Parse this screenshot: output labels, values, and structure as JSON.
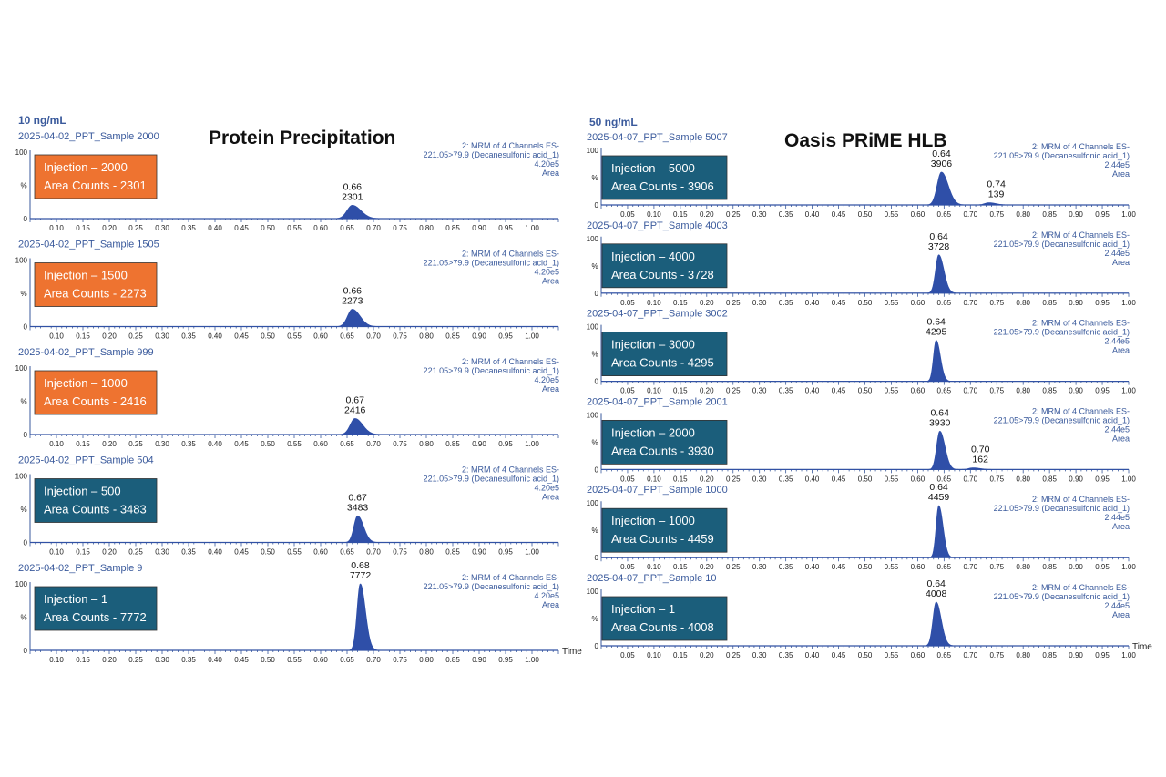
{
  "panels": [
    {
      "concentration": "10 ng/mL",
      "heading": "Protein Precipitation",
      "time_axis_label": "Time"
    },
    {
      "concentration": "50 ng/mL",
      "heading": "Oasis PRiME HLB",
      "time_axis_label": "Time"
    }
  ],
  "chart_data": [
    {
      "type": "line",
      "panel": 0,
      "sample": "2025-04-02_PPT_Sample 2000",
      "channel": [
        "2: MRM of 4 Channels ES-",
        "221.05>79.9 (Decanesulfonic acid_1)",
        "4.20e5",
        "Area"
      ],
      "injection": "Injection – 2000",
      "area_counts": "Area Counts - 2301",
      "box_color": "#ee7330",
      "ylim": [
        0,
        100
      ],
      "y_ticks": [
        "100",
        "0"
      ],
      "ylabel": "%",
      "xlim": [
        0.05,
        1.05
      ],
      "x_ticks": [
        "0.10",
        "0.15",
        "0.20",
        "0.25",
        "0.30",
        "0.35",
        "0.40",
        "0.45",
        "0.50",
        "0.55",
        "0.60",
        "0.65",
        "0.70",
        "0.75",
        "0.80",
        "0.85",
        "0.90",
        "0.95",
        "1.00"
      ],
      "peaks": [
        {
          "rt": 0.66,
          "height": 20,
          "width": 0.01,
          "rt_label": "0.66",
          "area_label": "2301"
        }
      ]
    },
    {
      "type": "line",
      "panel": 0,
      "sample": "2025-04-02_PPT_Sample 1505",
      "channel": [
        "2: MRM of 4 Channels ES-",
        "221.05>79.9 (Decanesulfonic acid_1)",
        "4.20e5",
        "Area"
      ],
      "injection": "Injection – 1500",
      "area_counts": "Area Counts - 2273",
      "box_color": "#ee7330",
      "ylim": [
        0,
        100
      ],
      "y_ticks": [
        "100",
        "0"
      ],
      "ylabel": "%",
      "xlim": [
        0.05,
        1.05
      ],
      "x_ticks": [
        "0.10",
        "0.15",
        "0.20",
        "0.25",
        "0.30",
        "0.35",
        "0.40",
        "0.45",
        "0.50",
        "0.55",
        "0.60",
        "0.65",
        "0.70",
        "0.75",
        "0.80",
        "0.85",
        "0.90",
        "0.95",
        "1.00"
      ],
      "peaks": [
        {
          "rt": 0.66,
          "height": 26,
          "width": 0.009,
          "rt_label": "0.66",
          "area_label": "2273"
        }
      ]
    },
    {
      "type": "line",
      "panel": 0,
      "sample": "2025-04-02_PPT_Sample 999",
      "channel": [
        "2: MRM of 4 Channels ES-",
        "221.05>79.9 (Decanesulfonic acid_1)",
        "4.20e5",
        "Area"
      ],
      "injection": "Injection – 1000",
      "area_counts": "Area Counts - 2416",
      "box_color": "#ee7330",
      "ylim": [
        0,
        100
      ],
      "y_ticks": [
        "100",
        "0"
      ],
      "ylabel": "%",
      "xlim": [
        0.05,
        1.05
      ],
      "x_ticks": [
        "0.10",
        "0.15",
        "0.20",
        "0.25",
        "0.30",
        "0.35",
        "0.40",
        "0.45",
        "0.50",
        "0.55",
        "0.60",
        "0.65",
        "0.70",
        "0.75",
        "0.80",
        "0.85",
        "0.90",
        "0.95",
        "1.00"
      ],
      "peaks": [
        {
          "rt": 0.665,
          "height": 24,
          "width": 0.009,
          "rt_label": "0.67",
          "area_label": "2416"
        }
      ]
    },
    {
      "type": "line",
      "panel": 0,
      "sample": "2025-04-02_PPT_Sample 504",
      "channel": [
        "2: MRM of 4 Channels ES-",
        "221.05>79.9 (Decanesulfonic acid_1)",
        "4.20e5",
        "Area"
      ],
      "injection": "Injection – 500",
      "area_counts": "Area Counts - 3483",
      "box_color": "#1b5e7b",
      "ylim": [
        0,
        100
      ],
      "y_ticks": [
        "100",
        "0"
      ],
      "ylabel": "%",
      "xlim": [
        0.05,
        1.05
      ],
      "x_ticks": [
        "0.10",
        "0.15",
        "0.20",
        "0.25",
        "0.30",
        "0.35",
        "0.40",
        "0.45",
        "0.50",
        "0.55",
        "0.60",
        "0.65",
        "0.70",
        "0.75",
        "0.80",
        "0.85",
        "0.90",
        "0.95",
        "1.00"
      ],
      "peaks": [
        {
          "rt": 0.67,
          "height": 40,
          "width": 0.007,
          "rt_label": "0.67",
          "area_label": "3483"
        }
      ]
    },
    {
      "type": "line",
      "panel": 0,
      "sample": "2025-04-02_PPT_Sample 9",
      "channel": [
        "2: MRM of 4 Channels ES-",
        "221.05>79.9 (Decanesulfonic acid_1)",
        "4.20e5",
        "Area"
      ],
      "injection": "Injection – 1",
      "area_counts": "Area Counts - 7772",
      "box_color": "#1b5e7b",
      "ylim": [
        0,
        100
      ],
      "y_ticks": [
        "100",
        "0"
      ],
      "ylabel": "%",
      "xlim": [
        0.05,
        1.05
      ],
      "x_ticks": [
        "0.10",
        "0.15",
        "0.20",
        "0.25",
        "0.30",
        "0.35",
        "0.40",
        "0.45",
        "0.50",
        "0.55",
        "0.60",
        "0.65",
        "0.70",
        "0.75",
        "0.80",
        "0.85",
        "0.90",
        "0.95",
        "1.00"
      ],
      "peaks": [
        {
          "rt": 0.675,
          "height": 100,
          "width": 0.006,
          "rt_label": "0.68",
          "area_label": "7772"
        }
      ]
    },
    {
      "type": "line",
      "panel": 1,
      "sample": "2025-04-07_PPT_Sample 5007",
      "channel": [
        "2: MRM of 4 Channels ES-",
        "221.05>79.9 (Decanesulfonic acid_1)",
        "2.44e5",
        "Area"
      ],
      "injection": "Injection – 5000",
      "area_counts": "Area Counts - 3906",
      "box_color": "#1b5e7b",
      "ylim": [
        0,
        100
      ],
      "y_ticks": [
        "100",
        "0"
      ],
      "ylabel": "%",
      "xlim": [
        0.0,
        1.0
      ],
      "x_ticks": [
        "0.05",
        "0.10",
        "0.15",
        "0.20",
        "0.25",
        "0.30",
        "0.35",
        "0.40",
        "0.45",
        "0.50",
        "0.55",
        "0.60",
        "0.65",
        "0.70",
        "0.75",
        "0.80",
        "0.85",
        "0.90",
        "0.95",
        "1.00"
      ],
      "peaks": [
        {
          "rt": 0.645,
          "height": 60,
          "width": 0.008,
          "rt_label": "0.64",
          "area_label": "3906"
        },
        {
          "rt": 0.735,
          "height": 4,
          "width": 0.008,
          "rt_label": "0.74",
          "area_label": "139"
        }
      ]
    },
    {
      "type": "line",
      "panel": 1,
      "sample": "2025-04-07_PPT_Sample 4003",
      "channel": [
        "2: MRM of 4 Channels ES-",
        "221.05>79.9 (Decanesulfonic acid_1)",
        "2.44e5",
        "Area"
      ],
      "injection": "Injection – 4000",
      "area_counts": "Area Counts - 3728",
      "box_color": "#1b5e7b",
      "ylim": [
        0,
        100
      ],
      "y_ticks": [
        "100",
        "0"
      ],
      "ylabel": "%",
      "xlim": [
        0.0,
        1.0
      ],
      "x_ticks": [
        "0.05",
        "0.10",
        "0.15",
        "0.20",
        "0.25",
        "0.30",
        "0.35",
        "0.40",
        "0.45",
        "0.50",
        "0.55",
        "0.60",
        "0.65",
        "0.70",
        "0.75",
        "0.80",
        "0.85",
        "0.90",
        "0.95",
        "1.00"
      ],
      "peaks": [
        {
          "rt": 0.64,
          "height": 70,
          "width": 0.006,
          "rt_label": "0.64",
          "area_label": "3728"
        }
      ]
    },
    {
      "type": "line",
      "panel": 1,
      "sample": "2025-04-07_PPT_Sample 3002",
      "channel": [
        "2: MRM of 4 Channels ES-",
        "221.05>79.9 (Decanesulfonic acid_1)",
        "2.44e5",
        "Area"
      ],
      "injection": "Injection – 3000",
      "area_counts": "Area Counts - 4295",
      "box_color": "#1b5e7b",
      "ylim": [
        0,
        100
      ],
      "y_ticks": [
        "100",
        "0"
      ],
      "ylabel": "%",
      "xlim": [
        0.0,
        1.0
      ],
      "x_ticks": [
        "0.05",
        "0.10",
        "0.15",
        "0.20",
        "0.25",
        "0.30",
        "0.35",
        "0.40",
        "0.45",
        "0.50",
        "0.55",
        "0.60",
        "0.65",
        "0.70",
        "0.75",
        "0.80",
        "0.85",
        "0.90",
        "0.95",
        "1.00"
      ],
      "peaks": [
        {
          "rt": 0.635,
          "height": 75,
          "width": 0.005,
          "rt_label": "0.64",
          "area_label": "4295"
        }
      ]
    },
    {
      "type": "line",
      "panel": 1,
      "sample": "2025-04-07_PPT_Sample 2001",
      "channel": [
        "2: MRM of 4 Channels ES-",
        "221.05>79.9 (Decanesulfonic acid_1)",
        "2.44e5",
        "Area"
      ],
      "injection": "Injection – 2000",
      "area_counts": "Area Counts - 3930",
      "box_color": "#1b5e7b",
      "ylim": [
        0,
        100
      ],
      "y_ticks": [
        "100",
        "0"
      ],
      "ylabel": "%",
      "xlim": [
        0.0,
        1.0
      ],
      "x_ticks": [
        "0.05",
        "0.10",
        "0.15",
        "0.20",
        "0.25",
        "0.30",
        "0.35",
        "0.40",
        "0.45",
        "0.50",
        "0.55",
        "0.60",
        "0.65",
        "0.70",
        "0.75",
        "0.80",
        "0.85",
        "0.90",
        "0.95",
        "1.00"
      ],
      "peaks": [
        {
          "rt": 0.642,
          "height": 70,
          "width": 0.006,
          "rt_label": "0.64",
          "area_label": "3930"
        },
        {
          "rt": 0.705,
          "height": 3,
          "width": 0.008,
          "rt_label": "0.70",
          "area_label": "162"
        }
      ]
    },
    {
      "type": "line",
      "panel": 1,
      "sample": "2025-04-07_PPT_Sample 1000",
      "channel": [
        "2: MRM of 4 Channels ES-",
        "221.05>79.9 (Decanesulfonic acid_1)",
        "2.44e5",
        "Area"
      ],
      "injection": "Injection – 1000",
      "area_counts": "Area Counts - 4459",
      "box_color": "#1b5e7b",
      "ylim": [
        0,
        100
      ],
      "y_ticks": [
        "100",
        "0"
      ],
      "ylabel": "%",
      "xlim": [
        0.0,
        1.0
      ],
      "x_ticks": [
        "0.05",
        "0.10",
        "0.15",
        "0.20",
        "0.25",
        "0.30",
        "0.35",
        "0.40",
        "0.45",
        "0.50",
        "0.55",
        "0.60",
        "0.65",
        "0.70",
        "0.75",
        "0.80",
        "0.85",
        "0.90",
        "0.95",
        "1.00"
      ],
      "peaks": [
        {
          "rt": 0.64,
          "height": 95,
          "width": 0.005,
          "rt_label": "0.64",
          "area_label": "4459"
        }
      ]
    },
    {
      "type": "line",
      "panel": 1,
      "sample": "2025-04-07_PPT_Sample 10",
      "channel": [
        "2: MRM of 4 Channels ES-",
        "221.05>79.9 (Decanesulfonic acid_1)",
        "2.44e5",
        "Area"
      ],
      "injection": "Injection – 1",
      "area_counts": "Area Counts - 4008",
      "box_color": "#1b5e7b",
      "ylim": [
        0,
        100
      ],
      "y_ticks": [
        "100",
        "0"
      ],
      "ylabel": "%",
      "xlim": [
        0.0,
        1.0
      ],
      "x_ticks": [
        "0.05",
        "0.10",
        "0.15",
        "0.20",
        "0.25",
        "0.30",
        "0.35",
        "0.40",
        "0.45",
        "0.50",
        "0.55",
        "0.60",
        "0.65",
        "0.70",
        "0.75",
        "0.80",
        "0.85",
        "0.90",
        "0.95",
        "1.00"
      ],
      "peaks": [
        {
          "rt": 0.635,
          "height": 80,
          "width": 0.006,
          "rt_label": "0.64",
          "area_label": "4008"
        }
      ]
    }
  ],
  "colors": {
    "trace": "#2f4fa8",
    "axis": "#3a5a9c",
    "text_blue": "#3a5a9c",
    "orange_box": "#ee7330",
    "teal_box": "#1b5e7b"
  }
}
